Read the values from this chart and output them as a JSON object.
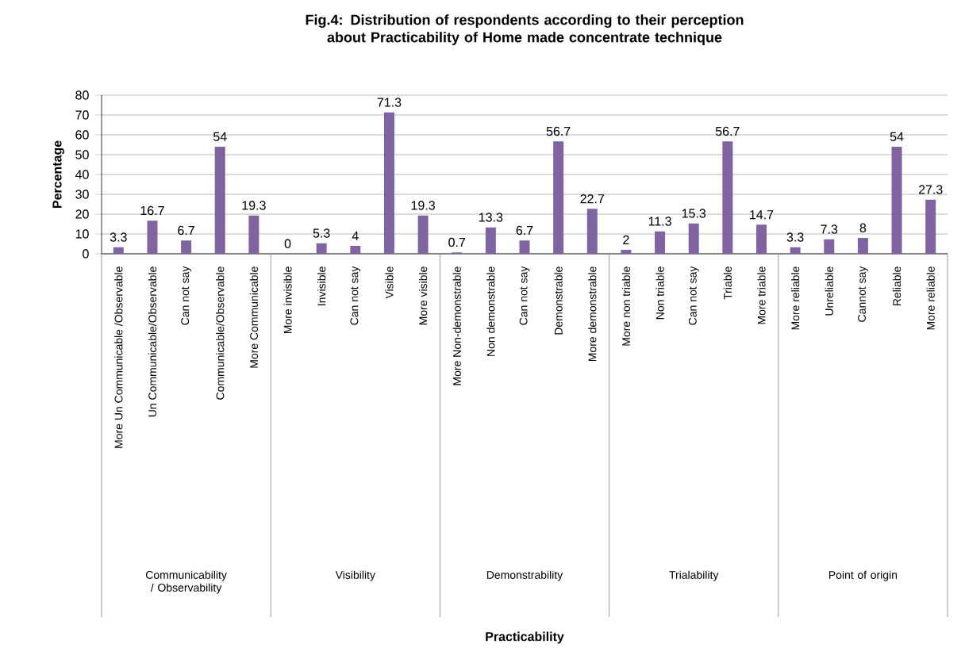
{
  "chart_data": {
    "type": "bar",
    "title": "Fig.4: Distribution of respondents according to their perception about Practicability of Home made concentrate technique",
    "ylabel": "Percentage",
    "categories": [
      "More Un Communicable /Observable",
      "Un Communicable/Observable",
      "Can not say",
      "Communicable/Observable",
      "More Communicable",
      "More invisible",
      "Invisible",
      "Can not say",
      "Visible",
      "More visible",
      "More Non-demonstrable",
      "Non demonstrable",
      "Can not say",
      "Demonstrable",
      "More demonstrable",
      "More non triable",
      "Non triable",
      "Can not say",
      "Triable",
      "More triable",
      "More reliable",
      "Unreliable",
      "Cannot say",
      "Reliable",
      "More reliable"
    ],
    "values": [
      3.3,
      16.7,
      6.7,
      54,
      19.3,
      0,
      5.3,
      4,
      71.3,
      19.3,
      0.7,
      13.3,
      6.7,
      56.7,
      22.7,
      2,
      11.3,
      15.3,
      56.7,
      14.7,
      3.3,
      7.3,
      8,
      54,
      27.3
    ],
    "color": "#8064a2",
    "ylim": [
      0,
      80
    ],
    "yticks": [
      0,
      10,
      20,
      30,
      40,
      50,
      60,
      70,
      80
    ],
    "grid": "y",
    "data_labels": true,
    "annotations": [
      "Communicability / Observability",
      "Visibility",
      "Demonstrability",
      "Trialability",
      "Point of origin",
      "Practicability"
    ]
  }
}
